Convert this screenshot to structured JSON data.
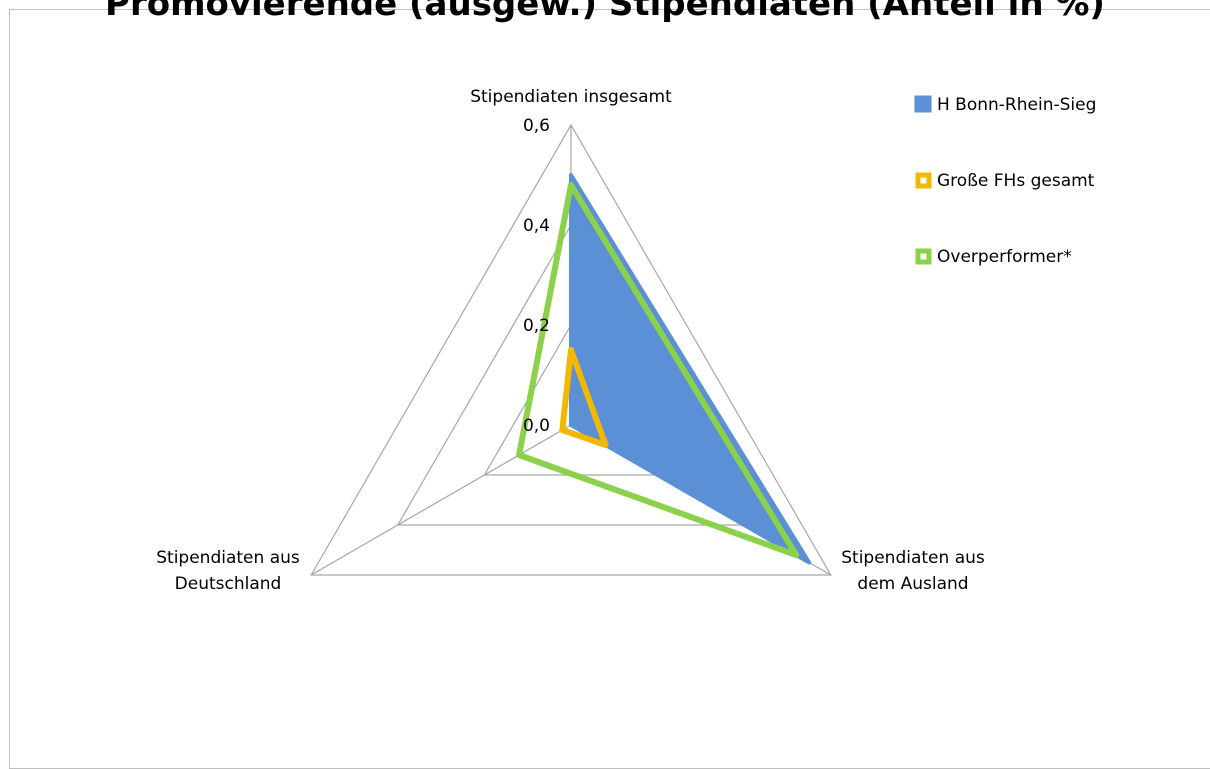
{
  "chart_data": {
    "type": "radar",
    "title": "Promovierende (ausgew.) Stipendiaten (Anteil in %)",
    "axes": [
      "Stipendiaten insgesamt",
      "Stipendiaten aus dem Ausland",
      "Stipendiaten aus Deutschland"
    ],
    "axis_label_lines": [
      [
        "Stipendiaten insgesamt"
      ],
      [
        "Stipendiaten aus",
        "dem Ausland"
      ],
      [
        "Stipendiaten aus",
        "Deutschland"
      ]
    ],
    "range": [
      0,
      0.6
    ],
    "ticks": [
      "0,0",
      "0,2",
      "0,4",
      "0,6"
    ],
    "legend_position": "right",
    "series": [
      {
        "name": "H Bonn-Rhein-Sieg",
        "values": [
          0.5,
          0.55,
          0.0
        ],
        "color": "#5b8fd6",
        "fill": true
      },
      {
        "name": "Große FHs gesamt",
        "values": [
          0.15,
          0.08,
          0.02
        ],
        "color": "#f2b800",
        "fill": false
      },
      {
        "name": "Overperformer*",
        "values": [
          0.48,
          0.52,
          0.12
        ],
        "color": "#8cd14b",
        "fill": false
      }
    ]
  }
}
